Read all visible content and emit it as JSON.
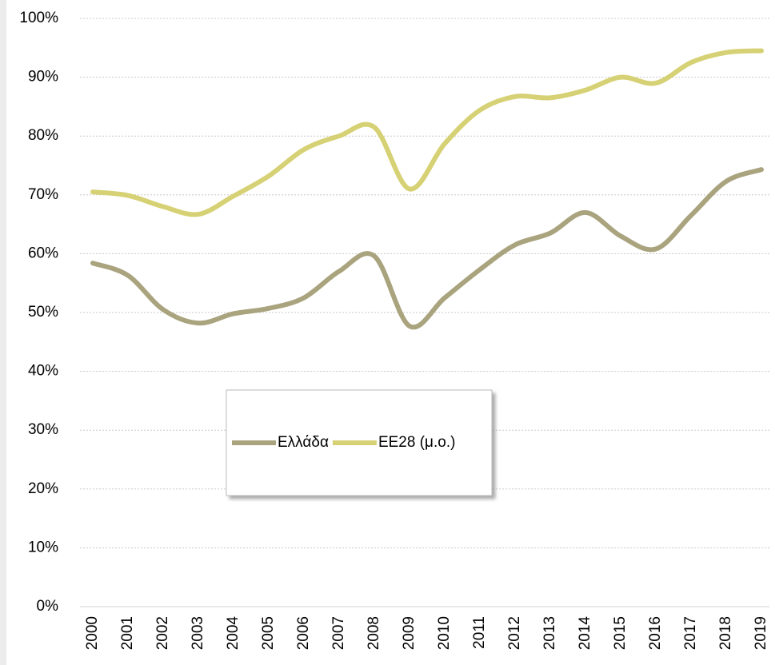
{
  "chart_data": {
    "type": "line",
    "categories": [
      "2000",
      "2001",
      "2002",
      "2003",
      "2004",
      "2005",
      "2006",
      "2007",
      "2008",
      "2009",
      "2010",
      "2011",
      "2012",
      "2013",
      "2014",
      "2015",
      "2016",
      "2017",
      "2018",
      "2019"
    ],
    "series": [
      {
        "name": "Ελλάδα",
        "color": "#a9a37e",
        "values": [
          58.4,
          56.3,
          50.5,
          48.2,
          49.8,
          50.7,
          52.5,
          57.0,
          59.6,
          47.7,
          52.5,
          57.3,
          61.5,
          63.5,
          67.0,
          63.0,
          60.8,
          66.5,
          72.3,
          74.3
        ]
      },
      {
        "name": "ΕΕ28 (μ.ο.)",
        "color": "#d6d174",
        "values": [
          70.5,
          69.9,
          68.0,
          66.7,
          69.8,
          73.2,
          77.7,
          80.0,
          81.5,
          71.0,
          78.7,
          84.4,
          86.7,
          86.5,
          87.8,
          90.0,
          89.0,
          92.5,
          94.2,
          94.5
        ]
      }
    ],
    "ylim": [
      0,
      100
    ],
    "yticks": [
      {
        "value": 0,
        "label": "0%"
      },
      {
        "value": 10,
        "label": "10%"
      },
      {
        "value": 20,
        "label": "20%"
      },
      {
        "value": 30,
        "label": "30%"
      },
      {
        "value": 40,
        "label": "40%"
      },
      {
        "value": 50,
        "label": "50%"
      },
      {
        "value": 60,
        "label": "60%"
      },
      {
        "value": 70,
        "label": "70%"
      },
      {
        "value": 80,
        "label": "80%"
      },
      {
        "value": 90,
        "label": "90%"
      },
      {
        "value": 100,
        "label": "100%"
      }
    ],
    "grid": true,
    "smooth": true
  }
}
